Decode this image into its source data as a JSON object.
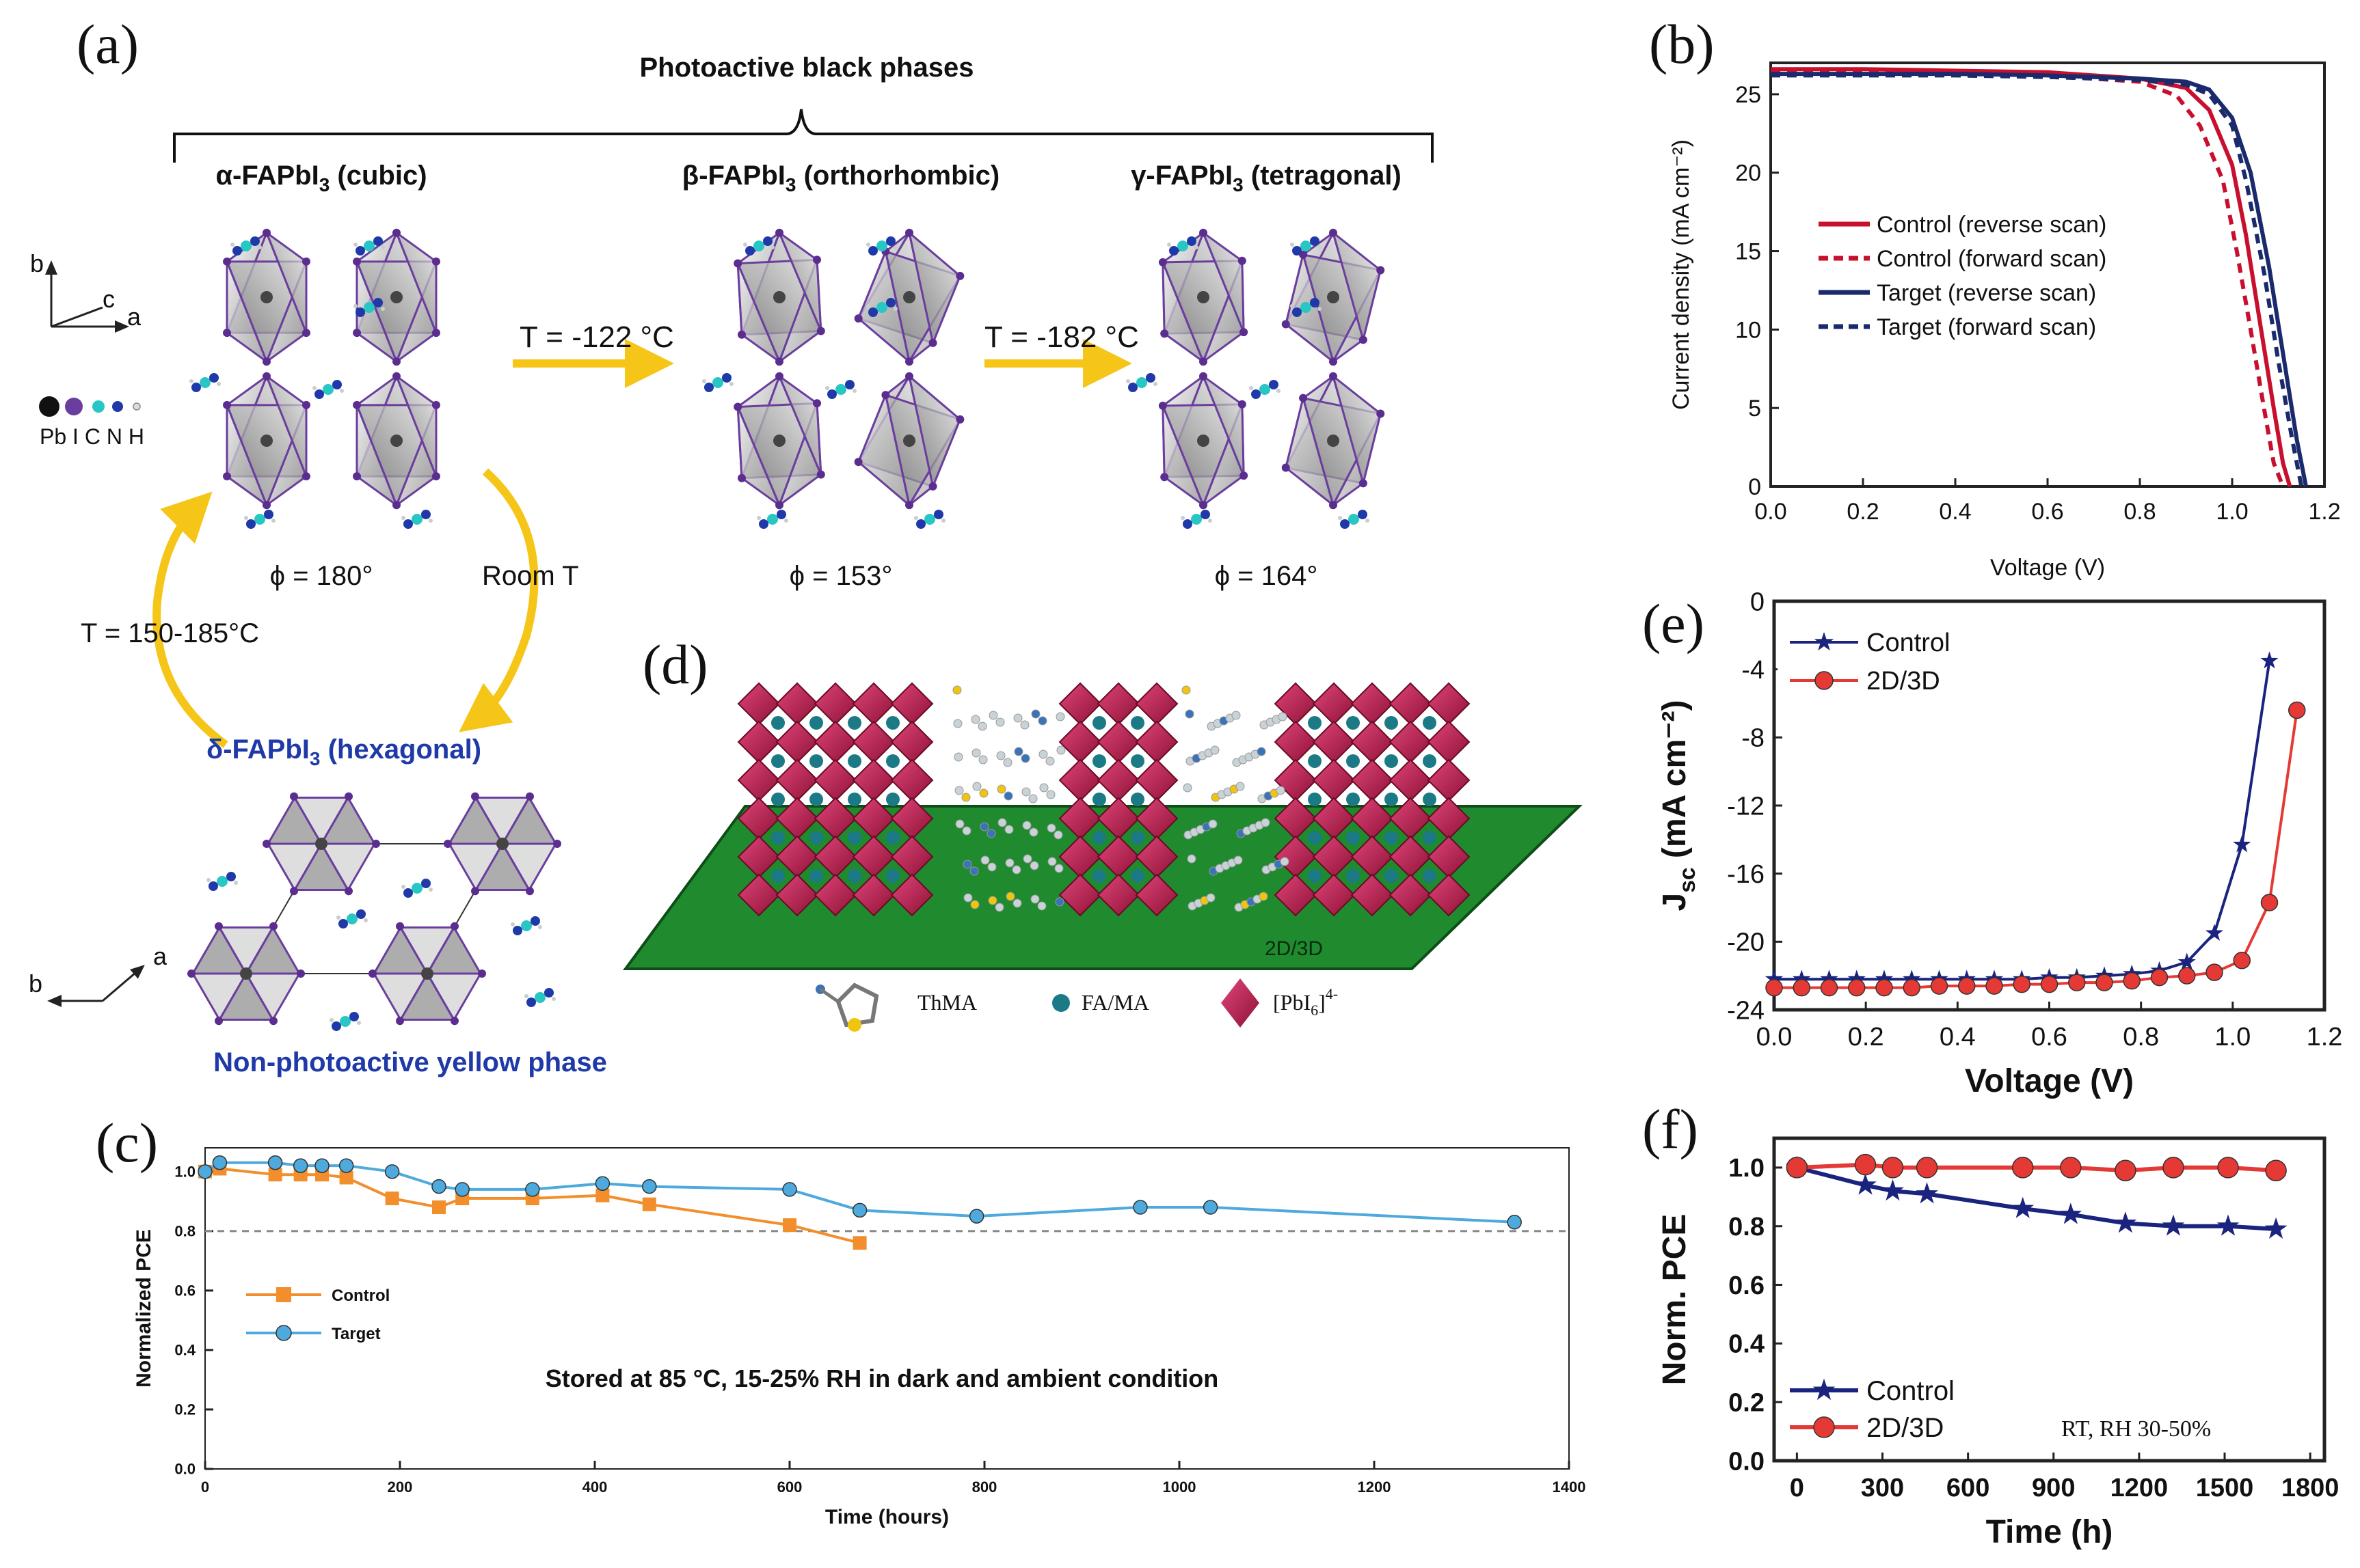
{
  "panel_labels": {
    "a": "(a)",
    "b": "(b)",
    "c": "(c)",
    "d": "(d)",
    "e": "(e)",
    "f": "(f)"
  },
  "panel_a": {
    "bracket_title": "Photoactive black phases",
    "phase_prefix": [
      "α-FAPbI",
      "β-FAPbI",
      "γ-FAPbI"
    ],
    "phase_sub": "3",
    "phase_suffix": [
      " (cubic)",
      " (orthorhombic)",
      " (tetragonal)"
    ],
    "phi": [
      "ϕ = 180°",
      "ϕ = 153°",
      "ϕ = 164°"
    ],
    "transitions": [
      "T = -122 °C",
      "T = -182 °C"
    ],
    "room_t": "Room T",
    "heat": "T = 150-185°C",
    "delta_prefix": "δ-FAPbI",
    "delta_suffix": " (hexagonal)",
    "yellow_phase": "Non-photoactive yellow phase",
    "axis_b": "b",
    "axis_c": "c",
    "axis_a": "a",
    "legend_atoms": "Pb I  C N H",
    "axis2_a": "a",
    "axis2_b": "b",
    "colors": {
      "phase_blue": "#1f3aa8",
      "arrow": "#f5c518",
      "bond": "#6a3e9e"
    }
  },
  "panel_d": {
    "substrate_label": "2D/3D",
    "legend": [
      "ThMA",
      "FA/MA",
      "[PbI",
      "6",
      "]",
      "4-"
    ],
    "colors": {
      "octa": "#c4245a",
      "substrate": "#1f8a2e",
      "ion": "#1c7a86"
    }
  },
  "chart_data": [
    {
      "id": "b",
      "type": "line",
      "xlabel": "Voltage (V)",
      "ylabel": "Current density (mA cm⁻²)",
      "xlim": [
        0.0,
        1.2
      ],
      "ylim": [
        0,
        27
      ],
      "xticks": [
        "0.0",
        "0.2",
        "0.4",
        "0.6",
        "0.8",
        "1.0",
        "1.2"
      ],
      "yticks": [
        "0",
        "5",
        "10",
        "15",
        "20",
        "25"
      ],
      "series": [
        {
          "name": "Control (reverse scan)",
          "color": "#c8102e",
          "dash": "solid",
          "x": [
            0.0,
            0.2,
            0.4,
            0.6,
            0.8,
            0.9,
            0.95,
            1.0,
            1.03,
            1.06,
            1.09,
            1.11,
            1.125
          ],
          "y": [
            26.6,
            26.6,
            26.5,
            26.4,
            26.0,
            25.4,
            24.0,
            20.5,
            16.0,
            10.5,
            5.0,
            1.5,
            0.0
          ]
        },
        {
          "name": "Control (forward scan)",
          "color": "#c8102e",
          "dash": "dash",
          "x": [
            0.0,
            0.2,
            0.4,
            0.6,
            0.8,
            0.88,
            0.93,
            0.98,
            1.01,
            1.04,
            1.07,
            1.09,
            1.11
          ],
          "y": [
            26.4,
            26.4,
            26.3,
            26.2,
            25.8,
            24.9,
            23.0,
            19.5,
            15.0,
            10.0,
            4.8,
            1.5,
            0.0
          ]
        },
        {
          "name": "Target (reverse scan)",
          "color": "#1a2a6c",
          "dash": "solid",
          "x": [
            0.0,
            0.2,
            0.4,
            0.6,
            0.8,
            0.9,
            0.95,
            1.0,
            1.04,
            1.08,
            1.11,
            1.14,
            1.16
          ],
          "y": [
            26.3,
            26.3,
            26.3,
            26.2,
            26.0,
            25.8,
            25.3,
            23.5,
            20.0,
            14.0,
            8.5,
            3.0,
            0.0
          ]
        },
        {
          "name": "Target (forward scan)",
          "color": "#1a2a6c",
          "dash": "dash",
          "x": [
            0.0,
            0.2,
            0.4,
            0.6,
            0.8,
            0.9,
            0.95,
            1.0,
            1.03,
            1.07,
            1.1,
            1.13,
            1.15
          ],
          "y": [
            26.2,
            26.2,
            26.2,
            26.1,
            25.9,
            25.6,
            25.0,
            23.0,
            19.5,
            13.5,
            8.0,
            3.0,
            0.0
          ]
        }
      ]
    },
    {
      "id": "c",
      "type": "line",
      "xlabel": "Time (hours)",
      "ylabel": "Normalized PCE",
      "xlim": [
        0,
        1400
      ],
      "ylim": [
        0.0,
        1.08
      ],
      "xticks": [
        "0",
        "200",
        "400",
        "600",
        "800",
        "1000",
        "1200",
        "1400"
      ],
      "yticks": [
        "0.0",
        "0.2",
        "0.4",
        "0.6",
        "0.8",
        "1.0"
      ],
      "reference_line": 0.8,
      "annotation": "Stored at 85 °C, 15-25% RH in dark and ambient condition",
      "series": [
        {
          "name": "Control",
          "color": "#f28e2b",
          "marker": "square",
          "x": [
            0,
            15,
            72,
            98,
            120,
            145,
            192,
            240,
            264,
            336,
            408,
            456,
            600,
            672
          ],
          "y": [
            1.0,
            1.01,
            0.99,
            0.99,
            0.99,
            0.98,
            0.91,
            0.88,
            0.91,
            0.91,
            0.92,
            0.89,
            0.82,
            0.76
          ]
        },
        {
          "name": "Target",
          "color": "#4ea9dc",
          "marker": "circle",
          "x": [
            0,
            15,
            72,
            98,
            120,
            145,
            192,
            240,
            264,
            336,
            408,
            456,
            600,
            672,
            792,
            960,
            1032,
            1344
          ],
          "y": [
            1.0,
            1.03,
            1.03,
            1.02,
            1.02,
            1.02,
            1.0,
            0.95,
            0.94,
            0.94,
            0.96,
            0.95,
            0.94,
            0.87,
            0.85,
            0.88,
            0.88,
            0.83
          ]
        }
      ]
    },
    {
      "id": "e",
      "type": "line",
      "xlabel": "Voltage (V)",
      "ylabel": "J",
      "ylabel_sub": "sc",
      "ylabel_unit": " (mA cm⁻²)",
      "xlim": [
        0.0,
        1.2
      ],
      "ylim": [
        -24,
        0
      ],
      "xticks": [
        "0.0",
        "0.2",
        "0.4",
        "0.6",
        "0.8",
        "1.0",
        "1.2"
      ],
      "yticks": [
        "0",
        "-4",
        "-8",
        "-12",
        "-16",
        "-20",
        "-24"
      ],
      "series": [
        {
          "name": "Control",
          "color": "#1a237e",
          "marker": "star",
          "x": [
            0.0,
            0.06,
            0.12,
            0.18,
            0.24,
            0.3,
            0.36,
            0.42,
            0.48,
            0.54,
            0.6,
            0.66,
            0.72,
            0.78,
            0.84,
            0.9,
            0.96,
            1.02,
            1.08
          ],
          "y": [
            -22.2,
            -22.2,
            -22.2,
            -22.2,
            -22.2,
            -22.2,
            -22.2,
            -22.2,
            -22.2,
            -22.2,
            -22.1,
            -22.1,
            -22.0,
            -21.9,
            -21.7,
            -21.2,
            -19.5,
            -14.3,
            -3.5
          ]
        },
        {
          "name": "2D/3D",
          "color": "#e53935",
          "marker": "circle",
          "x": [
            0.0,
            0.06,
            0.12,
            0.18,
            0.24,
            0.3,
            0.36,
            0.42,
            0.48,
            0.54,
            0.6,
            0.66,
            0.72,
            0.78,
            0.84,
            0.9,
            0.96,
            1.02,
            1.08,
            1.14
          ],
          "y": [
            -22.7,
            -22.7,
            -22.7,
            -22.7,
            -22.7,
            -22.7,
            -22.6,
            -22.6,
            -22.6,
            -22.5,
            -22.5,
            -22.4,
            -22.4,
            -22.3,
            -22.1,
            -22.0,
            -21.8,
            -21.1,
            -17.7,
            -6.4
          ]
        }
      ]
    },
    {
      "id": "f",
      "type": "line",
      "xlabel": "Time (h)",
      "ylabel": "Norm. PCE",
      "xlim": [
        -80,
        1850
      ],
      "ylim": [
        0.0,
        1.1
      ],
      "xticks": [
        "0",
        "300",
        "600",
        "900",
        "1200",
        "1500",
        "1800"
      ],
      "yticks": [
        "0.0",
        "0.2",
        "0.4",
        "0.6",
        "0.8",
        "1.0"
      ],
      "annotation": "RT, RH 30-50%",
      "series": [
        {
          "name": "Control",
          "color": "#1a237e",
          "marker": "star",
          "x": [
            0,
            240,
            336,
            456,
            792,
            960,
            1152,
            1320,
            1512,
            1680
          ],
          "y": [
            1.0,
            0.94,
            0.92,
            0.91,
            0.86,
            0.84,
            0.81,
            0.8,
            0.8,
            0.79
          ]
        },
        {
          "name": "2D/3D",
          "color": "#e53935",
          "marker": "circle",
          "x": [
            0,
            240,
            336,
            456,
            792,
            960,
            1152,
            1320,
            1512,
            1680
          ],
          "y": [
            1.0,
            1.01,
            1.0,
            1.0,
            1.0,
            1.0,
            0.99,
            1.0,
            1.0,
            0.99
          ]
        }
      ]
    }
  ]
}
